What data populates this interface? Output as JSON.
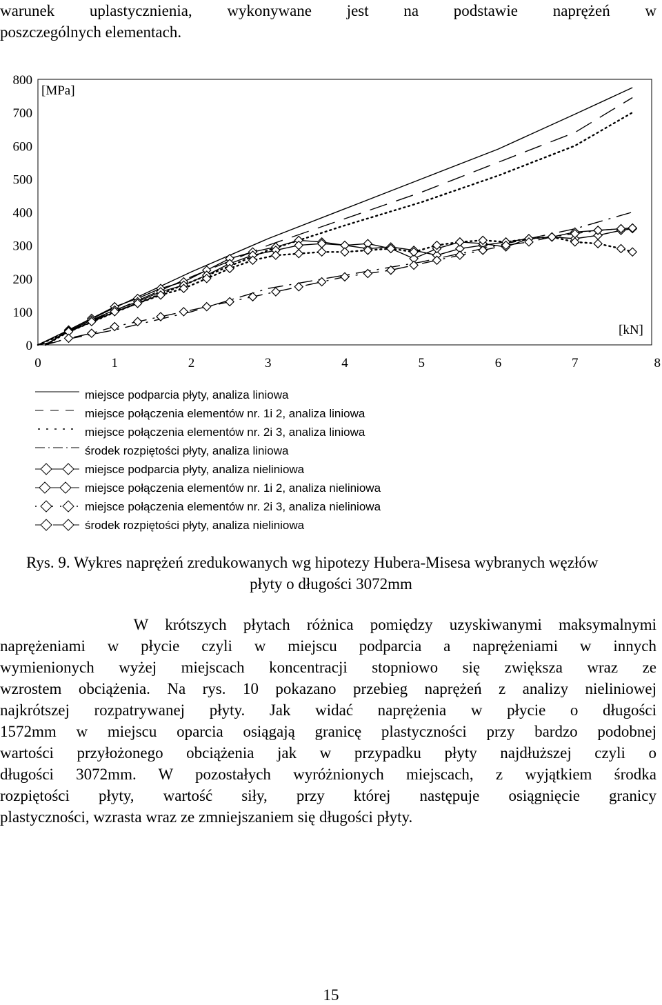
{
  "intro_lines": [
    "warunek uplastycznienia, wykonywane jest na podstawie naprężeń w",
    "poszczególnych elementach."
  ],
  "chart_data": {
    "type": "line",
    "y_unit_label": "[MPa]",
    "x_unit_label": "[kN]",
    "xlim": [
      0,
      8
    ],
    "ylim": [
      0,
      800
    ],
    "x_ticks": [
      "0",
      "1",
      "2",
      "3",
      "4",
      "5",
      "6",
      "7",
      "8"
    ],
    "y_ticks": [
      "0",
      "100",
      "200",
      "300",
      "400",
      "500",
      "600",
      "700",
      "800"
    ],
    "grid": false,
    "series": [
      {
        "name": "miejsce podparcia płyty, analiza liniowa",
        "style": "solid",
        "marker": "none",
        "x": [
          0,
          1,
          2,
          3,
          4,
          5,
          6,
          7,
          7.75
        ],
        "y": [
          0,
          112,
          220,
          320,
          410,
          500,
          590,
          695,
          775
        ]
      },
      {
        "name": "miejsce połączenia elementów nr. 1i 2, analiza liniowa",
        "style": "longdash",
        "marker": "none",
        "x": [
          0,
          1,
          2,
          3,
          4,
          5,
          6,
          7,
          7.75
        ],
        "y": [
          0,
          103,
          205,
          300,
          380,
          460,
          550,
          640,
          745
        ]
      },
      {
        "name": "miejsce połączenia elementów nr. 2i 3, analiza liniowa",
        "style": "dotted",
        "marker": "none",
        "x": [
          0,
          1,
          2,
          3,
          4,
          5,
          6,
          7,
          7.75
        ],
        "y": [
          0,
          98,
          190,
          285,
          360,
          430,
          510,
          600,
          700
        ]
      },
      {
        "name": "środek rozpiętości płyty, analiza liniowa",
        "style": "dashdot",
        "marker": "none",
        "x": [
          0,
          1,
          2,
          3,
          4,
          5,
          6,
          7,
          7.75
        ],
        "y": [
          0,
          45,
          100,
          170,
          210,
          250,
          300,
          350,
          400
        ]
      },
      {
        "name": "miejsce podparcia płyty, analiza nieliniowa",
        "style": "solid",
        "marker": "diamond",
        "x": [
          0.1,
          0.4,
          0.7,
          1.0,
          1.3,
          1.6,
          1.9,
          2.2,
          2.5,
          2.8,
          3.1,
          3.4,
          3.7,
          4.0,
          4.3,
          4.6,
          4.9,
          5.2,
          5.5,
          5.8,
          6.1,
          6.4,
          6.7,
          7.0,
          7.3,
          7.6,
          7.75
        ],
        "y": [
          0,
          45,
          80,
          115,
          140,
          170,
          190,
          225,
          260,
          280,
          295,
          315,
          310,
          300,
          290,
          295,
          285,
          270,
          290,
          300,
          310,
          320,
          325,
          340,
          345,
          350,
          352
        ]
      },
      {
        "name": "miejsce połączenia elementów nr. 1i 2, analiza nieliniowa",
        "style": "solid",
        "marker": "diamond",
        "x": [
          0.1,
          0.4,
          0.7,
          1.0,
          1.3,
          1.6,
          1.9,
          2.2,
          2.5,
          2.8,
          3.1,
          3.4,
          3.7,
          4.0,
          4.3,
          4.6,
          4.9,
          5.2,
          5.5,
          5.8,
          6.1,
          6.4,
          6.7,
          7.0,
          7.3,
          7.6,
          7.75
        ],
        "y": [
          0,
          42,
          75,
          105,
          130,
          160,
          180,
          210,
          245,
          270,
          285,
          300,
          305,
          300,
          305,
          290,
          260,
          290,
          310,
          305,
          295,
          320,
          325,
          320,
          330,
          345,
          350
        ]
      },
      {
        "name": "miejsce połączenia elementów nr. 2i 3, analiza nieliniowa",
        "style": "dotted",
        "marker": "diamond",
        "x": [
          0.1,
          0.4,
          0.7,
          1.0,
          1.3,
          1.6,
          1.9,
          2.2,
          2.5,
          2.8,
          3.1,
          3.4,
          3.7,
          4.0,
          4.3,
          4.6,
          4.9,
          5.2,
          5.5,
          5.8,
          6.1,
          6.4,
          6.7,
          7.0,
          7.3,
          7.6,
          7.75
        ],
        "y": [
          0,
          40,
          70,
          100,
          125,
          150,
          170,
          200,
          230,
          255,
          270,
          275,
          280,
          280,
          285,
          290,
          280,
          300,
          310,
          315,
          310,
          320,
          325,
          310,
          305,
          290,
          280
        ]
      },
      {
        "name": "środek rozpiętości płyty, analiza nieliniowa",
        "style": "dashdot",
        "marker": "diamond",
        "x": [
          0.1,
          0.4,
          0.7,
          1.0,
          1.3,
          1.6,
          1.9,
          2.2,
          2.5,
          2.8,
          3.1,
          3.4,
          3.7,
          4.0,
          4.3,
          4.6,
          4.9,
          5.2,
          5.5,
          5.8,
          6.1,
          6.4,
          6.7,
          7.0,
          7.3,
          7.6,
          7.75
        ],
        "y": [
          0,
          20,
          35,
          55,
          70,
          85,
          100,
          115,
          130,
          145,
          160,
          175,
          190,
          205,
          215,
          225,
          240,
          255,
          270,
          285,
          300,
          310,
          325,
          335,
          345,
          350,
          352
        ]
      }
    ]
  },
  "caption": {
    "line1": "Rys. 9. Wykres naprężeń zredukowanych wg hipotezy Hubera-Misesa wybranych węzłów",
    "line2": "płyty o długości 3072mm"
  },
  "body_lines": [
    "        W krótszych płytach różnica pomiędzy uzyskiwanymi maksymalnymi",
    "naprężeniami w płycie czyli w miejscu podparcia a naprężeniami w innych",
    "wymienionych wyżej miejscach koncentracji stopniowo się zwiększa wraz ze",
    "wzrostem obciążenia. Na rys. 10 pokazano przebieg naprężeń z analizy nieliniowej",
    "najkrótszej rozpatrywanej płyty.  Jak widać naprężenia w płycie o długości",
    "1572mm w miejscu oparcia osiągają granicę plastyczności przy bardzo podobnej",
    "wartości przyłożonego obciążenia jak w przypadku płyty najdłuższej czyli o",
    "długości 3072mm. W pozostałych wyróżnionych miejscach, z wyjątkiem środka",
    "rozpiętości płyty, wartość siły, przy której następuje osiągnięcie granicy",
    "plastyczności, wzrasta wraz ze zmniejszaniem się długości płyty."
  ],
  "page_number": "15"
}
